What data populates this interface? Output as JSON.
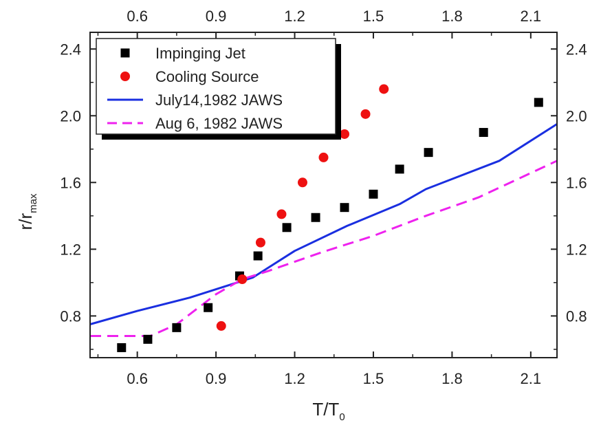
{
  "chart_data": {
    "type": "scatter",
    "title": "",
    "xlabel": {
      "main": "T/T",
      "sub": "0"
    },
    "ylabel": {
      "main": "r/r",
      "sub": "max"
    },
    "xlim": [
      0.42,
      2.2
    ],
    "ylim": [
      0.55,
      2.5
    ],
    "xticks": [
      0.6,
      0.9,
      1.2,
      1.5,
      1.8,
      2.1
    ],
    "xtick_labels": [
      "0.6",
      "0.9",
      "1.2",
      "1.5",
      "1.8",
      "2.1"
    ],
    "yticks": [
      0.8,
      1.2,
      1.6,
      2.0,
      2.4
    ],
    "ytick_labels": [
      "0.8",
      "1.2",
      "1.6",
      "2.0",
      "2.4"
    ],
    "secondary_axes": "top and right mirror bottom and left",
    "grid": false,
    "legend_position": "top-left",
    "series": [
      {
        "name": "Impinging Jet",
        "kind": "scatter",
        "marker": "square",
        "color": "#000000",
        "points": [
          [
            0.54,
            0.61
          ],
          [
            0.64,
            0.66
          ],
          [
            0.75,
            0.73
          ],
          [
            0.87,
            0.85
          ],
          [
            0.99,
            1.04
          ],
          [
            1.06,
            1.16
          ],
          [
            1.17,
            1.33
          ],
          [
            1.28,
            1.39
          ],
          [
            1.39,
            1.45
          ],
          [
            1.5,
            1.53
          ],
          [
            1.6,
            1.68
          ],
          [
            1.71,
            1.78
          ],
          [
            1.92,
            1.9
          ],
          [
            2.13,
            2.08
          ]
        ]
      },
      {
        "name": "Cooling Source",
        "kind": "scatter",
        "marker": "circle",
        "color": "#ee1111",
        "points": [
          [
            0.92,
            0.74
          ],
          [
            1.0,
            1.02
          ],
          [
            1.07,
            1.24
          ],
          [
            1.15,
            1.41
          ],
          [
            1.23,
            1.6
          ],
          [
            1.31,
            1.75
          ],
          [
            1.39,
            1.89
          ],
          [
            1.47,
            2.01
          ],
          [
            1.54,
            2.16
          ]
        ]
      },
      {
        "name": "July14,1982 JAWS",
        "kind": "line",
        "style": "solid",
        "color": "#1a2fe0",
        "points": [
          [
            0.42,
            0.75
          ],
          [
            0.6,
            0.83
          ],
          [
            0.8,
            0.91
          ],
          [
            1.04,
            1.03
          ],
          [
            1.2,
            1.19
          ],
          [
            1.4,
            1.34
          ],
          [
            1.6,
            1.47
          ],
          [
            1.7,
            1.56
          ],
          [
            1.98,
            1.73
          ],
          [
            2.2,
            1.95
          ]
        ]
      },
      {
        "name": "Aug 6, 1982 JAWS",
        "kind": "line",
        "style": "dashed",
        "color": "#ee22ee",
        "points": [
          [
            0.42,
            0.68
          ],
          [
            0.65,
            0.68
          ],
          [
            0.75,
            0.75
          ],
          [
            0.9,
            0.93
          ],
          [
            1.0,
            1.02
          ],
          [
            1.1,
            1.07
          ],
          [
            1.3,
            1.18
          ],
          [
            1.5,
            1.28
          ],
          [
            1.7,
            1.4
          ],
          [
            1.9,
            1.51
          ],
          [
            2.2,
            1.73
          ]
        ]
      }
    ]
  }
}
